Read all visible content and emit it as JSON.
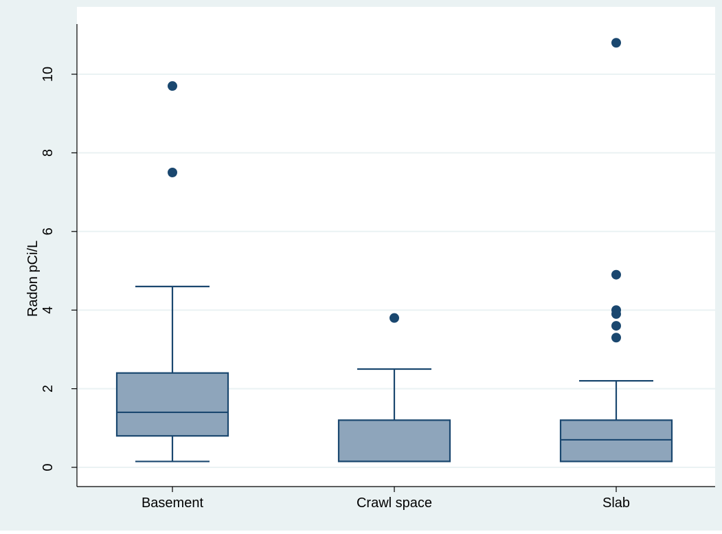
{
  "chart_data": {
    "type": "box",
    "ylabel": "Radon pCi/L",
    "xlabel": "",
    "ylim": [
      -0.45,
      11.25
    ],
    "yticks": [
      "0",
      "2",
      "4",
      "6",
      "8",
      "10"
    ],
    "grid": true,
    "categories": [
      "Basement",
      "Crawl space",
      "Slab"
    ],
    "boxes": [
      {
        "category": "Basement",
        "whisker_low": 0.15,
        "q1": 0.8,
        "median": 1.4,
        "q3": 2.4,
        "whisker_high": 4.6,
        "outliers": [
          7.5,
          9.7
        ]
      },
      {
        "category": "Crawl space",
        "whisker_low": 0.15,
        "q1": 0.15,
        "median": 0.15,
        "q3": 1.2,
        "whisker_high": 2.5,
        "outliers": [
          3.8
        ]
      },
      {
        "category": "Slab",
        "whisker_low": 0.15,
        "q1": 0.15,
        "median": 0.7,
        "q3": 1.2,
        "whisker_high": 2.2,
        "outliers": [
          3.3,
          3.6,
          3.9,
          4.0,
          4.9,
          10.8
        ]
      }
    ],
    "colors": {
      "background": "#eaf2f3",
      "plot_background": "#ffffff",
      "box_fill": "#8ea5bb",
      "box_stroke": "#1a476f",
      "outlier": "#1a476f",
      "grid": "#eaf2f3",
      "axis": "#000000"
    }
  }
}
